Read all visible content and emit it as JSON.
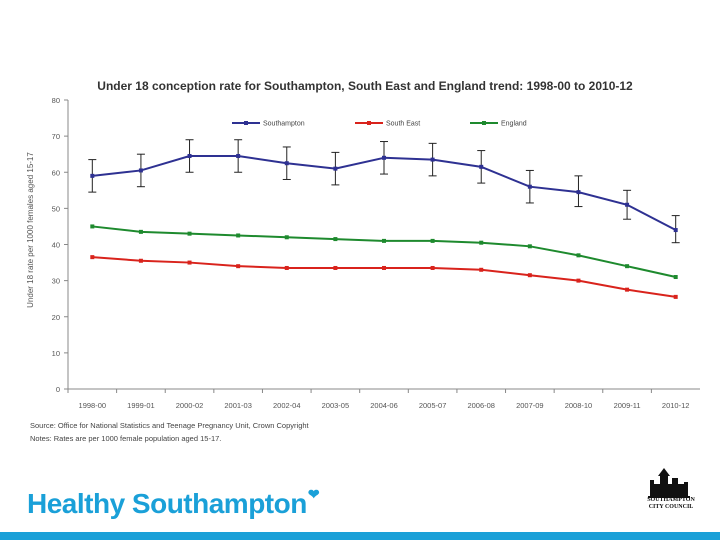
{
  "chart_data": {
    "type": "line",
    "title": "Under 18 conception rate for Southampton, South East and England trend: 1998-00 to 2010-12",
    "ylabel": "Under 18 rate per 1000 females aged 15-17",
    "xlabel": "",
    "ylim": [
      0,
      80
    ],
    "yticks": [
      0,
      10,
      20,
      30,
      40,
      50,
      60,
      70,
      80
    ],
    "categories": [
      "1998-00",
      "1999-01",
      "2000-02",
      "2001-03",
      "2002-04",
      "2003-05",
      "2004-06",
      "2005-07",
      "2006-08",
      "2007-09",
      "2008-10",
      "2009-11",
      "2010-12"
    ],
    "series": [
      {
        "name": "Southampton",
        "color": "#2e3192",
        "values": [
          59,
          60.5,
          64.5,
          64.5,
          62.5,
          61,
          64,
          63.5,
          61.5,
          56,
          54.5,
          51,
          44
        ],
        "error_low": [
          54.5,
          56,
          60,
          60,
          58,
          56.5,
          59.5,
          59,
          57,
          51.5,
          50.5,
          47,
          40.5
        ],
        "error_high": [
          63.5,
          65,
          69,
          69,
          67,
          65.5,
          68.5,
          68,
          66,
          60.5,
          59,
          55,
          48
        ]
      },
      {
        "name": "South East",
        "color": "#d9231c",
        "values": [
          36.5,
          35.5,
          35,
          34,
          33.5,
          33.5,
          33.5,
          33.5,
          33,
          31.5,
          30,
          27.5,
          25.5
        ]
      },
      {
        "name": "England",
        "color": "#1e8a2e",
        "values": [
          45,
          43.5,
          43,
          42.5,
          42,
          41.5,
          41,
          41,
          40.5,
          39.5,
          37,
          34,
          31
        ]
      }
    ],
    "legend": "top"
  },
  "notes": {
    "source": "Source: Office for National Statistics and Teenage Pregnancy Unit, Crown Copyright",
    "rates": "Notes: Rates are per 1000 female population aged 15-17."
  },
  "branding": {
    "name": "Healthy Southampton",
    "heart": "❤",
    "council_line1": "SOUTHAMPTON",
    "council_line2": "CITY COUNCIL"
  },
  "colors": {
    "brand": "#1aa0d8"
  }
}
